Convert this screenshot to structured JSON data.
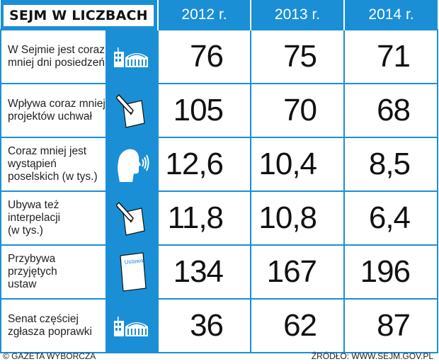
{
  "title": "SEJM W LICZBACH",
  "years": [
    "2012 r.",
    "2013 r.",
    "2014 r."
  ],
  "rows": [
    {
      "label": [
        "W Sejmie jest coraz",
        "mniej dni posiedzeń"
      ],
      "icon": "parliament-building-icon",
      "values": [
        "76",
        "75",
        "71"
      ]
    },
    {
      "label": [
        "Wpływa coraz mniej",
        "projektów uchwał"
      ],
      "icon": "pen-document-icon",
      "values": [
        "105",
        "70",
        "68"
      ]
    },
    {
      "label": [
        "Coraz mniej jest",
        "wystąpień",
        "poselskich (w tys.)"
      ],
      "icon": "speaking-head-icon",
      "values": [
        "12,6",
        "10,4",
        "8,5"
      ]
    },
    {
      "label": [
        "Ubywa też",
        "interpelacji",
        "(w tys.)"
      ],
      "icon": "pen-document-icon",
      "values": [
        "11,8",
        "10,8",
        "6,4"
      ]
    },
    {
      "label": [
        "Przybywa",
        "przyjętych",
        "ustaw"
      ],
      "icon": "ustawa-document-icon",
      "icon_text": "Ustawa",
      "values": [
        "134",
        "167",
        "196"
      ]
    },
    {
      "label": [
        "Senat częściej",
        "zgłasza poprawki"
      ],
      "icon": "parliament-building-icon",
      "values": [
        "36",
        "62",
        "87"
      ]
    }
  ],
  "footer": {
    "left": "© GAZETA WYBORCZA",
    "right": "ŹRÓDŁO: WWW.SEJM.GOV.PL"
  },
  "colors": {
    "accent": "#1a8fd6",
    "background": "#ffffff",
    "text": "#111111"
  }
}
